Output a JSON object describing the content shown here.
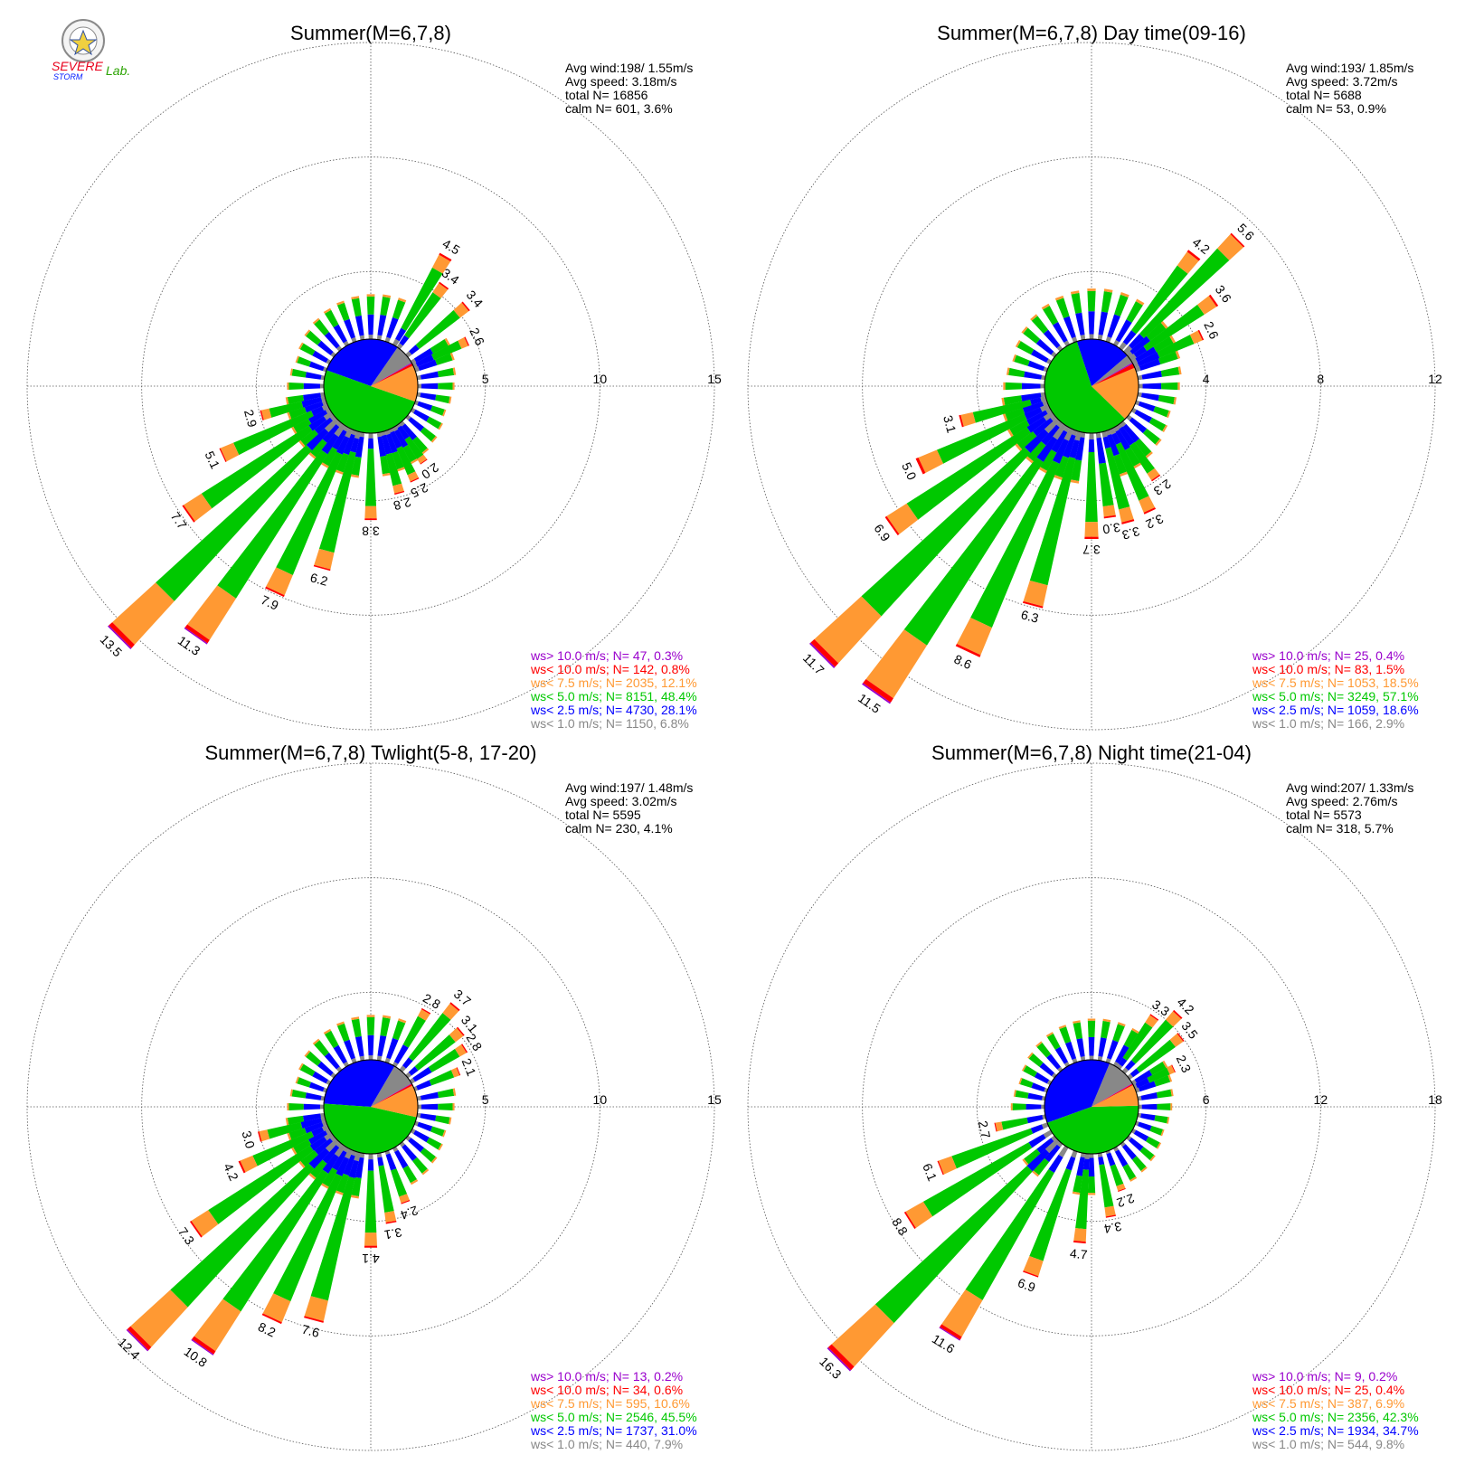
{
  "logo": {
    "text_severe": "SEVERE",
    "text_storm": "STORM",
    "text_lab": "Lab.",
    "colors": {
      "severe": "#e8001c",
      "storm": "#0019ff",
      "lab": "#2aa300",
      "seal": "#8a8a8a"
    }
  },
  "palette": {
    "calm_wedge": "#888888",
    "lt1": "#888888",
    "lt2_5": "#0000ff",
    "lt5": "#00c800",
    "lt7_5": "#ff9933",
    "lt10": "#ff0000",
    "gt10": "#9900cc",
    "grid": "#555555",
    "text": "#000000"
  },
  "chart_data": [
    {
      "type": "windrose",
      "title": "Summer(M=6,7,8)",
      "rmax": 15,
      "rings": [
        5,
        10,
        15
      ],
      "ring_labels": [
        "5",
        "10",
        "15"
      ],
      "stats": [
        "Avg wind:198/ 1.55m/s",
        "Avg speed: 3.18m/s",
        "total N=      16856",
        "calm N=    601,   3.6%"
      ],
      "legend": [
        {
          "text": "ws> 10.0 m/s; N=     47,  0.3%",
          "color": "#9900cc"
        },
        {
          "text": "ws< 10.0 m/s; N=   142,  0.8%",
          "color": "#ff0000"
        },
        {
          "text": "ws<  7.5 m/s; N=  2035, 12.1%",
          "color": "#ff9933"
        },
        {
          "text": "ws<  5.0 m/s; N=  8151, 48.4%",
          "color": "#00c800"
        },
        {
          "text": "ws<  2.5 m/s; N=  4730, 28.1%",
          "color": "#0000ff"
        },
        {
          "text": "ws<  1.0 m/s; N=  1150,  6.8%",
          "color": "#888888"
        }
      ],
      "center_pie": [
        6.8,
        28.1,
        48.4,
        12.1,
        0.8,
        0.3
      ],
      "bars": [
        {
          "deg": 30,
          "total": 4.5,
          "label": "4.5"
        },
        {
          "deg": 36,
          "total": 3.4,
          "label": "3.4"
        },
        {
          "deg": 50,
          "total": 3.4,
          "label": "3.4"
        },
        {
          "deg": 65,
          "total": 2.6,
          "label": "2.6"
        },
        {
          "deg": 145,
          "total": 2.0,
          "label": "2.0"
        },
        {
          "deg": 155,
          "total": 2.5,
          "label": "2.5"
        },
        {
          "deg": 165,
          "total": 2.8,
          "label": "2.8"
        },
        {
          "deg": 180,
          "total": 3.8,
          "label": "3.8"
        },
        {
          "deg": 195,
          "total": 6.2,
          "label": "6.2"
        },
        {
          "deg": 205,
          "total": 7.9,
          "label": "7.9"
        },
        {
          "deg": 215,
          "total": 11.3,
          "label": "11.3"
        },
        {
          "deg": 225,
          "total": 13.5,
          "label": "13.5"
        },
        {
          "deg": 235,
          "total": 7.7,
          "label": "7.7"
        },
        {
          "deg": 245,
          "total": 5.1,
          "label": "5.1"
        },
        {
          "deg": 255,
          "total": 2.9,
          "label": "2.9"
        }
      ],
      "small_bars": 2.0
    },
    {
      "type": "windrose",
      "title": "Summer(M=6,7,8) Day time(09-16)",
      "rmax": 12,
      "rings": [
        4,
        8,
        12
      ],
      "ring_labels": [
        "4",
        "8",
        "12"
      ],
      "stats": [
        "Avg wind:193/ 1.85m/s",
        "Avg speed: 3.72m/s",
        "total N=       5688",
        "calm N=      53,   0.9%"
      ],
      "legend": [
        {
          "text": "ws> 10.0 m/s; N=     25,  0.4%",
          "color": "#9900cc"
        },
        {
          "text": "ws< 10.0 m/s; N=     83,  1.5%",
          "color": "#ff0000"
        },
        {
          "text": "ws<  7.5 m/s; N=  1053, 18.5%",
          "color": "#ff9933"
        },
        {
          "text": "ws<  5.0 m/s; N=  3249, 57.1%",
          "color": "#00c800"
        },
        {
          "text": "ws<  2.5 m/s; N=  1059, 18.6%",
          "color": "#0000ff"
        },
        {
          "text": "ws<  1.0 m/s; N=    166,  2.9%",
          "color": "#888888"
        }
      ],
      "center_pie": [
        2.9,
        18.6,
        57.1,
        18.5,
        1.5,
        0.4
      ],
      "bars": [
        {
          "deg": 38,
          "total": 4.2,
          "label": "4.2"
        },
        {
          "deg": 45,
          "total": 5.6,
          "label": "5.6"
        },
        {
          "deg": 55,
          "total": 3.6,
          "label": "3.6"
        },
        {
          "deg": 65,
          "total": 2.6,
          "label": "2.6"
        },
        {
          "deg": 145,
          "total": 2.3,
          "label": "2.3"
        },
        {
          "deg": 155,
          "total": 3.2,
          "label": "3.2"
        },
        {
          "deg": 165,
          "total": 3.3,
          "label": "3.3"
        },
        {
          "deg": 172,
          "total": 3.0,
          "label": "3.0"
        },
        {
          "deg": 180,
          "total": 3.7,
          "label": "3.7"
        },
        {
          "deg": 195,
          "total": 6.3,
          "label": "6.3"
        },
        {
          "deg": 205,
          "total": 8.6,
          "label": "8.6"
        },
        {
          "deg": 215,
          "total": 11.5,
          "label": "11.5"
        },
        {
          "deg": 225,
          "total": 11.7,
          "label": "11.7"
        },
        {
          "deg": 235,
          "total": 6.9,
          "label": "6.9"
        },
        {
          "deg": 245,
          "total": 5.0,
          "label": "5.0"
        },
        {
          "deg": 255,
          "total": 3.1,
          "label": "3.1"
        }
      ],
      "small_bars": 1.8
    },
    {
      "type": "windrose",
      "title": "Summer(M=6,7,8) Twlight(5-8, 17-20)",
      "rmax": 15,
      "rings": [
        5,
        10,
        15
      ],
      "ring_labels": [
        "5",
        "10",
        "15"
      ],
      "stats": [
        "Avg wind:197/ 1.48m/s",
        "Avg speed: 3.02m/s",
        "total N=       5595",
        "calm N=    230,   4.1%"
      ],
      "legend": [
        {
          "text": "ws> 10.0 m/s; N=     13,  0.2%",
          "color": "#9900cc"
        },
        {
          "text": "ws< 10.0 m/s; N=     34,  0.6%",
          "color": "#ff0000"
        },
        {
          "text": "ws<  7.5 m/s; N=    595, 10.6%",
          "color": "#ff9933"
        },
        {
          "text": "ws<  5.0 m/s; N=  2546, 45.5%",
          "color": "#00c800"
        },
        {
          "text": "ws<  2.5 m/s; N=  1737, 31.0%",
          "color": "#0000ff"
        },
        {
          "text": "ws<  1.0 m/s; N=    440,  7.9%",
          "color": "#888888"
        }
      ],
      "center_pie": [
        7.9,
        31.0,
        45.5,
        10.6,
        0.6,
        0.2
      ],
      "bars": [
        {
          "deg": 30,
          "total": 2.8,
          "label": "2.8"
        },
        {
          "deg": 40,
          "total": 3.7,
          "label": "3.7"
        },
        {
          "deg": 50,
          "total": 3.1,
          "label": "3.1"
        },
        {
          "deg": 58,
          "total": 2.8,
          "label": "2.8"
        },
        {
          "deg": 68,
          "total": 2.1,
          "label": "2.1"
        },
        {
          "deg": 160,
          "total": 2.4,
          "label": "2.4"
        },
        {
          "deg": 170,
          "total": 3.1,
          "label": "3.1"
        },
        {
          "deg": 180,
          "total": 4.1,
          "label": "4.1"
        },
        {
          "deg": 195,
          "total": 7.6,
          "label": "7.6"
        },
        {
          "deg": 205,
          "total": 8.2,
          "label": "8.2"
        },
        {
          "deg": 215,
          "total": 10.8,
          "label": "10.8"
        },
        {
          "deg": 225,
          "total": 12.4,
          "label": "12.4"
        },
        {
          "deg": 235,
          "total": 7.3,
          "label": "7.3"
        },
        {
          "deg": 245,
          "total": 4.2,
          "label": "4.2"
        },
        {
          "deg": 255,
          "total": 3.0,
          "label": "3.0"
        }
      ],
      "small_bars": 2.0
    },
    {
      "type": "windrose",
      "title": "Summer(M=6,7,8) Night time(21-04)",
      "rmax": 18,
      "rings": [
        6,
        12,
        18
      ],
      "ring_labels": [
        "6",
        "12",
        "18"
      ],
      "stats": [
        "Avg wind:207/ 1.33m/s",
        "Avg speed: 2.76m/s",
        "total N=       5573",
        "calm N=    318,   5.7%"
      ],
      "legend": [
        {
          "text": "ws> 10.0 m/s; N=       9,  0.2%",
          "color": "#9900cc"
        },
        {
          "text": "ws< 10.0 m/s; N=     25,  0.4%",
          "color": "#ff0000"
        },
        {
          "text": "ws<  7.5 m/s; N=    387,  6.9%",
          "color": "#ff9933"
        },
        {
          "text": "ws<  5.0 m/s; N=  2356, 42.3%",
          "color": "#00c800"
        },
        {
          "text": "ws<  2.5 m/s; N=  1934, 34.7%",
          "color": "#0000ff"
        },
        {
          "text": "ws<  1.0 m/s; N=    544,  9.8%",
          "color": "#888888"
        }
      ],
      "center_pie": [
        9.8,
        34.7,
        42.3,
        6.9,
        0.4,
        0.2
      ],
      "bars": [
        {
          "deg": 35,
          "total": 3.3,
          "label": "3.3"
        },
        {
          "deg": 43,
          "total": 4.2,
          "label": "4.2"
        },
        {
          "deg": 52,
          "total": 3.5,
          "label": "3.5"
        },
        {
          "deg": 65,
          "total": 2.3,
          "label": "2.3"
        },
        {
          "deg": 160,
          "total": 2.2,
          "label": "2.2"
        },
        {
          "deg": 170,
          "total": 3.4,
          "label": "3.4"
        },
        {
          "deg": 185,
          "total": 4.7,
          "label": "4.7"
        },
        {
          "deg": 200,
          "total": 6.9,
          "label": "6.9"
        },
        {
          "deg": 212,
          "total": 11.6,
          "label": "11.6"
        },
        {
          "deg": 225,
          "total": 16.3,
          "label": "16.3"
        },
        {
          "deg": 238,
          "total": 8.8,
          "label": "8.8"
        },
        {
          "deg": 248,
          "total": 6.1,
          "label": "6.1"
        },
        {
          "deg": 258,
          "total": 2.7,
          "label": "2.7"
        }
      ],
      "small_bars": 2.2
    }
  ]
}
